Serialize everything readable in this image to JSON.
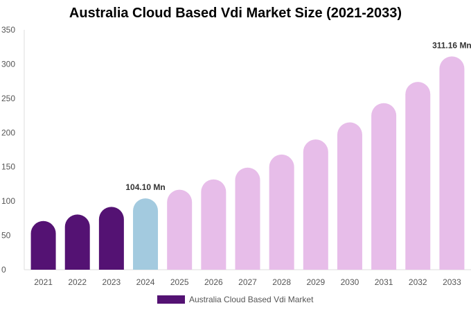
{
  "chart_data": {
    "type": "bar",
    "title": "Australia Cloud Based Vdi Market Size (2021-2033)",
    "categories": [
      "2021",
      "2022",
      "2023",
      "2024",
      "2025",
      "2026",
      "2027",
      "2028",
      "2029",
      "2030",
      "2031",
      "2032",
      "2033"
    ],
    "series": [
      {
        "name": "Australia Cloud Based Vdi Market",
        "values": [
          71,
          80.6,
          91.7,
          104.1,
          116.7,
          131.8,
          149,
          168,
          190,
          215,
          243,
          274,
          311.16
        ]
      }
    ],
    "bar_colors": [
      "#541273",
      "#541273",
      "#541273",
      "#a3cadf",
      "#e7bde9",
      "#e7bde9",
      "#e7bde9",
      "#e7bde9",
      "#e7bde9",
      "#e7bde9",
      "#e7bde9",
      "#e7bde9",
      "#e7bde9"
    ],
    "data_labels": [
      {
        "index": 3,
        "text": "104.10 Mn"
      },
      {
        "index": 12,
        "text": "311.16 Mn"
      }
    ],
    "yticks": [
      0,
      50,
      100,
      150,
      200,
      250,
      300,
      350
    ],
    "ylim": [
      0,
      350
    ],
    "xlabel": "",
    "ylabel": "",
    "grid": false,
    "legend_position": "bottom",
    "legend_color": "#541273"
  }
}
